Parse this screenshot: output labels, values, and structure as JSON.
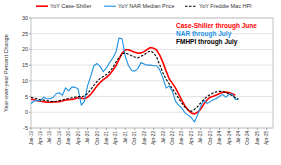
{
  "chart_data": {
    "type": "line",
    "y_label": "Year-over-year Percent Change",
    "categories": [
      "Jan-19",
      null,
      null,
      "Apr-19",
      null,
      null,
      "Jul-19",
      null,
      null,
      "Oct-19",
      null,
      null,
      "Jan-20",
      null,
      null,
      "Apr-20",
      null,
      null,
      "Jul-20",
      null,
      null,
      "Oct-20",
      null,
      null,
      "Jan-21",
      null,
      null,
      "Apr-21",
      null,
      null,
      "Jul-21",
      null,
      null,
      "Oct-21",
      null,
      null,
      "Jan-22",
      null,
      null,
      "Apr-22",
      null,
      null,
      "Jul-22",
      null,
      null,
      "Oct-22",
      null,
      null,
      "Jan-23",
      null,
      null,
      "Apr-23",
      null,
      null,
      "Jul-23",
      null,
      null,
      "Oct-23",
      null,
      null,
      "Jan-24",
      null,
      null,
      "Apr-24",
      null,
      null,
      "Jul-24",
      null,
      null,
      "Oct-24",
      null,
      null,
      "Jan-25",
      null,
      null,
      "Apr-25",
      null,
      null
    ],
    "series": [
      {
        "name": "YoY Case-Shiller",
        "color": "#ff0000",
        "line_style": "solid",
        "values": [
          4.2,
          4.0,
          3.7,
          3.5,
          3.4,
          3.2,
          3.2,
          3.3,
          3.3,
          3.4,
          3.6,
          3.9,
          4.0,
          4.1,
          4.3,
          4.6,
          4.5,
          4.3,
          4.8,
          5.7,
          7.0,
          8.4,
          9.5,
          10.4,
          11.1,
          12.0,
          13.3,
          14.8,
          16.8,
          18.8,
          19.9,
          19.9,
          19.5,
          19.1,
          18.8,
          18.9,
          19.3,
          20.0,
          20.6,
          20.4,
          19.8,
          18.1,
          15.8,
          13.1,
          10.6,
          9.2,
          7.7,
          5.8,
          3.8,
          2.0,
          0.7,
          -0.2,
          -0.5,
          0.0,
          1.0,
          2.6,
          3.9,
          4.8,
          5.1,
          5.5,
          6.0,
          6.4,
          6.4,
          6.3,
          5.9,
          5.4,
          null,
          null,
          null,
          null,
          null,
          null,
          null,
          null,
          null,
          null,
          null,
          null
        ]
      },
      {
        "name": "YoY NAR Median Price",
        "color": "#1e90e0",
        "line_style": "solid",
        "values": [
          2.8,
          3.6,
          3.8,
          3.6,
          4.8,
          4.3,
          4.3,
          4.7,
          5.9,
          6.2,
          5.4,
          7.8,
          6.8,
          8.0,
          8.0,
          7.4,
          2.3,
          3.5,
          8.5,
          11.4,
          14.8,
          15.5,
          14.6,
          12.9,
          14.1,
          15.8,
          17.2,
          19.1,
          23.6,
          23.4,
          17.8,
          14.9,
          13.3,
          13.1,
          13.9,
          15.8,
          15.4,
          15.0,
          15.0,
          14.8,
          14.8,
          13.4,
          10.8,
          7.7,
          8.4,
          6.6,
          3.5,
          2.3,
          1.3,
          -0.2,
          -0.9,
          -1.7,
          -3.1,
          -0.9,
          1.9,
          3.9,
          2.8,
          3.4,
          4.0,
          4.4,
          5.1,
          5.7,
          4.8,
          5.7,
          5.8,
          4.1,
          4.2,
          null,
          null,
          null,
          null,
          null,
          null,
          null,
          null,
          null,
          null,
          null
        ]
      },
      {
        "name": "YoY Freddie Mac HPI",
        "color": "#000000",
        "line_style": "dashed",
        "values": [
          4.8,
          4.5,
          4.3,
          4.0,
          3.9,
          3.7,
          3.5,
          3.4,
          3.5,
          3.7,
          3.9,
          4.2,
          4.4,
          4.6,
          4.8,
          5.0,
          5.0,
          5.2,
          6.0,
          7.2,
          8.6,
          9.8,
          10.8,
          11.4,
          12.0,
          12.9,
          14.2,
          15.9,
          17.4,
          18.6,
          18.9,
          18.5,
          18.0,
          17.6,
          17.3,
          17.8,
          18.3,
          19.1,
          19.5,
          18.9,
          17.5,
          15.0,
          12.5,
          10.5,
          9.0,
          7.5,
          6.0,
          4.4,
          2.9,
          1.6,
          0.8,
          0.3,
          0.9,
          1.8,
          3.0,
          4.1,
          5.0,
          5.6,
          6.2,
          6.5,
          6.7,
          6.6,
          6.3,
          5.8,
          5.3,
          4.7,
          4.2,
          null,
          null,
          null,
          null,
          null,
          null,
          null,
          null,
          null,
          null,
          null
        ]
      }
    ],
    "annotations": [
      {
        "text": "Case-Shiller through June",
        "color": "#ff0000"
      },
      {
        "text": "NAR through July",
        "color": "#1e90e0"
      },
      {
        "text": "FMHPI through July",
        "color": "#000000"
      }
    ],
    "ylim": [
      -5,
      30
    ],
    "yticks": [
      -5,
      0,
      5,
      10,
      15,
      20,
      25,
      30
    ],
    "grid": true,
    "legend": "top"
  }
}
